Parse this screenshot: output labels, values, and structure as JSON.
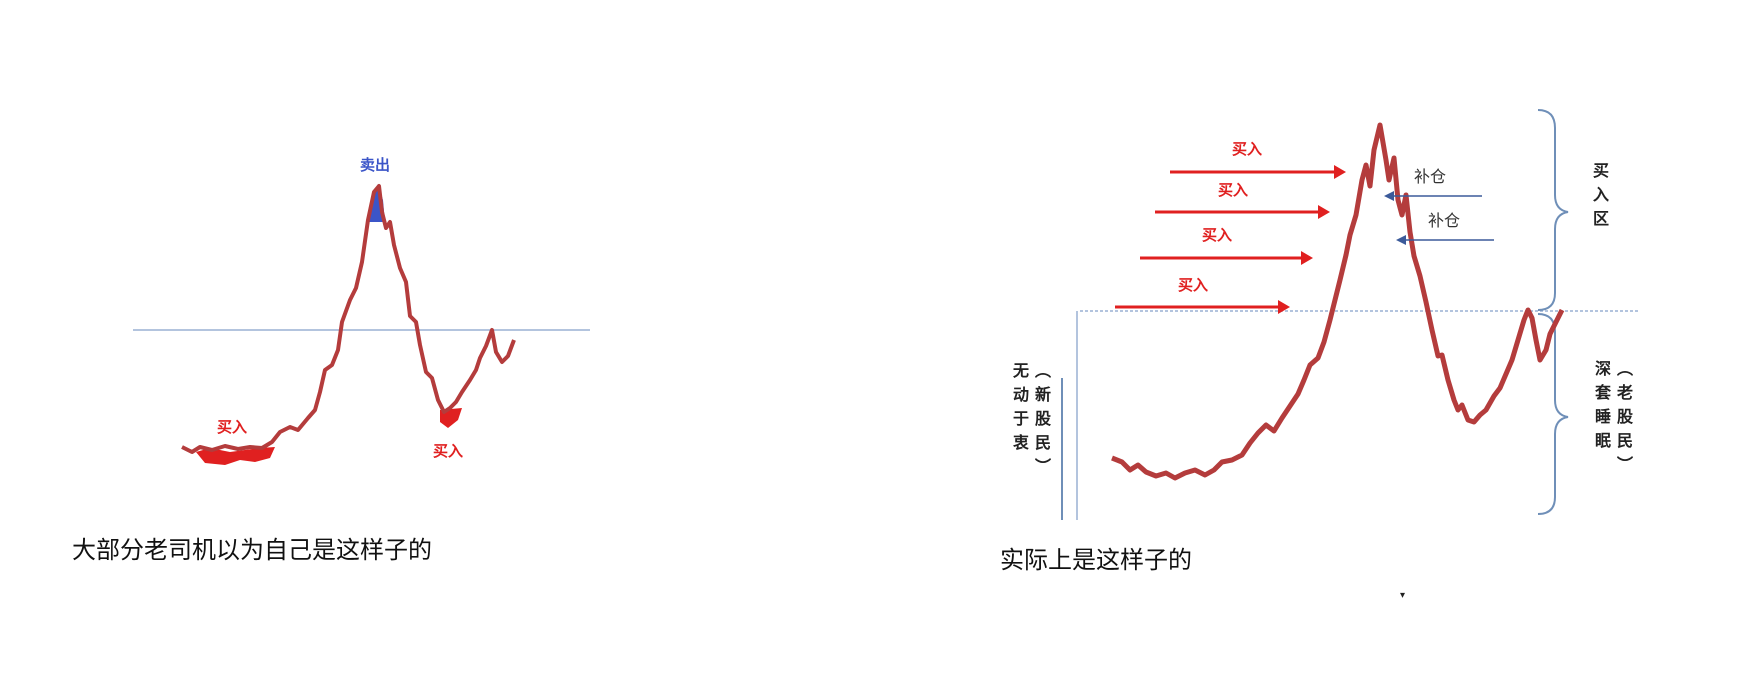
{
  "left_panel": {
    "label_sell": "卖出",
    "label_buy_bottom_left": "买入",
    "label_buy_bottom_right": "买入",
    "caption": "大部分老司机以为自己是这样子的",
    "colors": {
      "line": "#b43c3c",
      "sell": "#3b55c8",
      "buy": "#e02020",
      "threshold": "#9ab0d4"
    }
  },
  "right_panel": {
    "buy_arrows": [
      "买入",
      "买入",
      "买入",
      "买入"
    ],
    "add_position_arrows": [
      "补仓",
      "补仓"
    ],
    "bracket_top_label": "买入区",
    "bracket_bottom_label": "（老股民）深套睡眠",
    "left_bracket_label": "（新股民）无动于衷",
    "caption": "实际上是这样子的",
    "caret": "▾",
    "colors": {
      "line": "#b43c3c",
      "buy_arrow": "#e02020",
      "add_arrow": "#3b5a9a",
      "bracket": "#6f8fb8",
      "threshold": "#9ab0d4"
    }
  }
}
